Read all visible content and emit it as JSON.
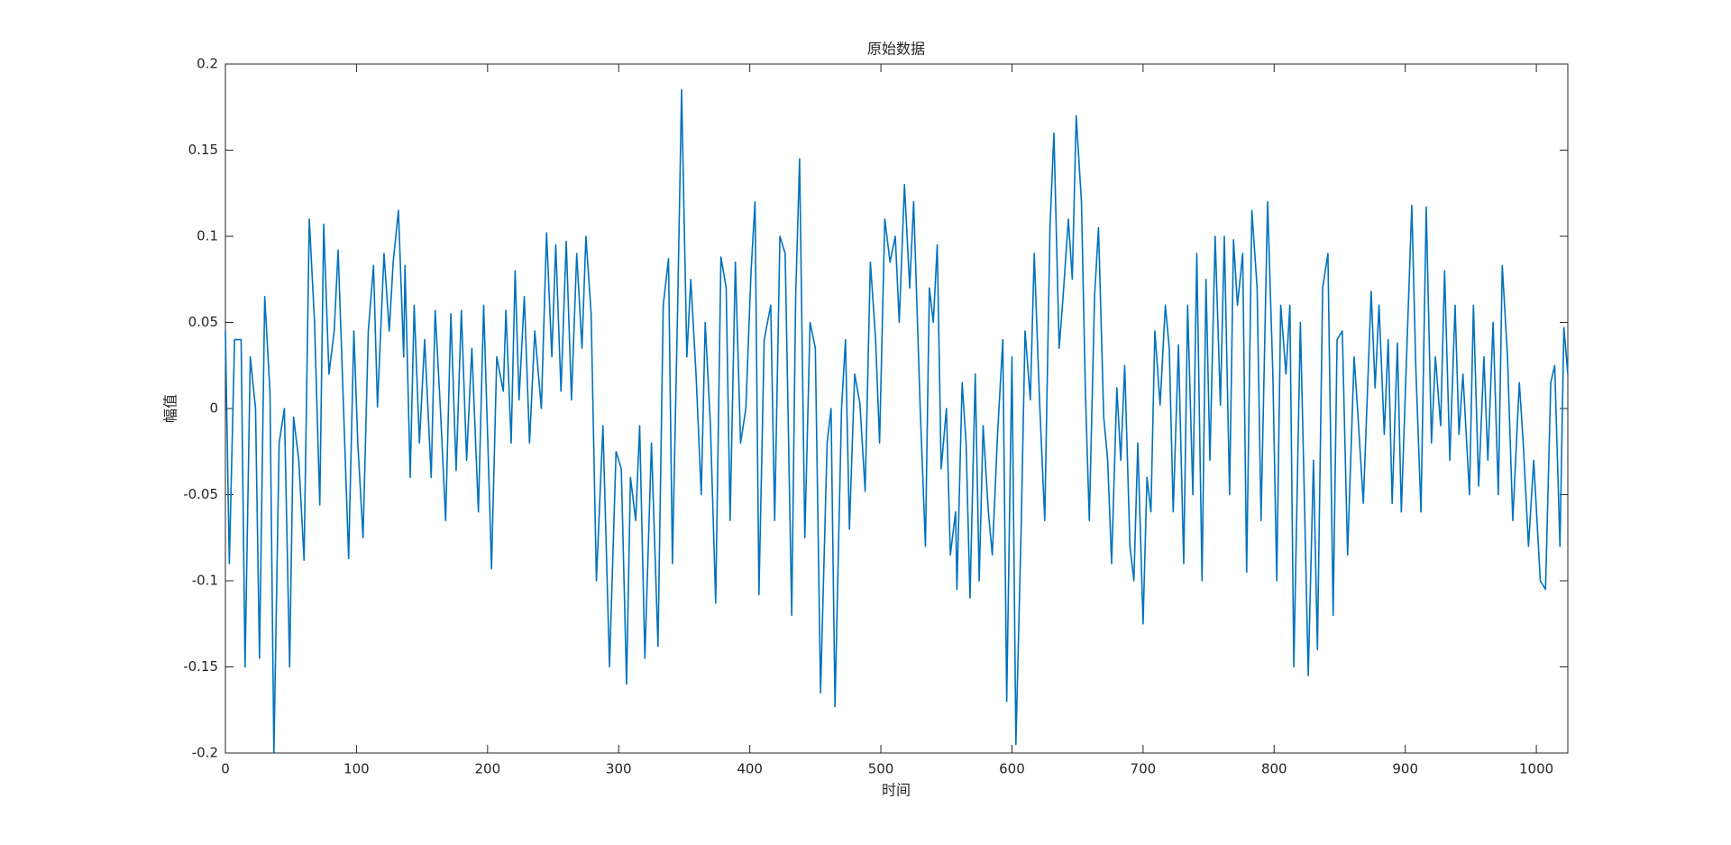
{
  "chart_data": {
    "type": "line",
    "title": "原始数据",
    "xlabel": "时间",
    "ylabel": "幅值",
    "color": "#0072bd",
    "xlim": [
      0,
      1024
    ],
    "xticks": [
      0,
      100,
      200,
      300,
      400,
      500,
      600,
      700,
      800,
      900,
      1000
    ],
    "ylim": [
      -0.2,
      0.2
    ],
    "yticks": [
      -0.2,
      -0.15,
      -0.1,
      -0.05,
      0,
      0.05,
      0.1,
      0.15,
      0.2
    ],
    "grid": false,
    "x": [
      0,
      3,
      7,
      12,
      15,
      19,
      23,
      26,
      30,
      34,
      37,
      41,
      45,
      49,
      52,
      56,
      60,
      64,
      68,
      72,
      75,
      79,
      83,
      86,
      90,
      94,
      98,
      101,
      105,
      109,
      113,
      116,
      121,
      125,
      128,
      132,
      136,
      137,
      141,
      144,
      148,
      152,
      157,
      160,
      164,
      168,
      172,
      176,
      180,
      184,
      188,
      193,
      197,
      201,
      203,
      207,
      212,
      214,
      218,
      221,
      224,
      228,
      232,
      236,
      241,
      245,
      249,
      252,
      256,
      260,
      264,
      268,
      272,
      275,
      279,
      283,
      288,
      293,
      298,
      302,
      306,
      309,
      313,
      316,
      320,
      325,
      330,
      334,
      338,
      341,
      345,
      348,
      352,
      355,
      359,
      363,
      366,
      370,
      374,
      378,
      382,
      385,
      389,
      393,
      397,
      401,
      404,
      407,
      411,
      416,
      419,
      423,
      427,
      432,
      435,
      438,
      442,
      446,
      450,
      454,
      459,
      462,
      465,
      470,
      473,
      476,
      480,
      484,
      488,
      492,
      496,
      499,
      503,
      507,
      511,
      514,
      518,
      522,
      525,
      530,
      534,
      537,
      540,
      543,
      546,
      550,
      553,
      557,
      558,
      562,
      565,
      568,
      572,
      575,
      578,
      582,
      585,
      589,
      593,
      596,
      600,
      603,
      607,
      610,
      614,
      617,
      621,
      625,
      629,
      632,
      636,
      639,
      643,
      646,
      649,
      653,
      656,
      659,
      663,
      666,
      670,
      673,
      676,
      680,
      683,
      686,
      690,
      693,
      696,
      700,
      703,
      706,
      709,
      713,
      717,
      720,
      723,
      727,
      731,
      734,
      738,
      741,
      745,
      748,
      751,
      755,
      759,
      762,
      766,
      769,
      772,
      776,
      779,
      783,
      787,
      790,
      795,
      799,
      802,
      805,
      809,
      812,
      815,
      820,
      823,
      826,
      830,
      833,
      837,
      841,
      845,
      848,
      852,
      856,
      861,
      864,
      868,
      874,
      877,
      880,
      884,
      887,
      890,
      894,
      897,
      901,
      905,
      908,
      912,
      916,
      920,
      923,
      927,
      930,
      934,
      938,
      941,
      944,
      949,
      952,
      956,
      960,
      963,
      967,
      971,
      974,
      978,
      982,
      987,
      990,
      994,
      998,
      1003,
      1007,
      1011,
      1014,
      1018,
      1021,
      1024
    ],
    "values": [
      0.045,
      -0.09,
      0.04,
      0.04,
      -0.15,
      0.03,
      0,
      -0.145,
      0.065,
      0.01,
      -0.2,
      -0.02,
      0,
      -0.15,
      -0.005,
      -0.03,
      -0.088,
      0.11,
      0.05,
      -0.056,
      0.107,
      0.02,
      0.045,
      0.092,
      0.003,
      -0.087,
      0.045,
      -0.02,
      -0.075,
      0.045,
      0.083,
      0.001,
      0.09,
      0.045,
      0.085,
      0.115,
      0.03,
      0.083,
      -0.04,
      0.06,
      -0.02,
      0.04,
      -0.04,
      0.057,
      0,
      -0.065,
      0.055,
      -0.036,
      0.057,
      -0.03,
      0.035,
      -0.06,
      0.06,
      -0.04,
      -0.093,
      0.03,
      0.01,
      0.057,
      -0.02,
      0.08,
      0.005,
      0.065,
      -0.02,
      0.045,
      0,
      0.102,
      0.03,
      0.095,
      0.01,
      0.097,
      0.005,
      0.09,
      0.035,
      0.1,
      0.055,
      -0.1,
      -0.01,
      -0.15,
      -0.025,
      -0.035,
      -0.16,
      -0.04,
      -0.065,
      -0.01,
      -0.145,
      -0.02,
      -0.138,
      0.06,
      0.087,
      -0.09,
      0.06,
      0.185,
      0.03,
      0.075,
      0.02,
      -0.05,
      0.05,
      -0.01,
      -0.113,
      0.088,
      0.07,
      -0.065,
      0.085,
      -0.02,
      0,
      0.08,
      0.12,
      -0.108,
      0.04,
      0.06,
      -0.065,
      0.1,
      0.09,
      -0.12,
      0.065,
      0.145,
      -0.075,
      0.05,
      0.035,
      -0.165,
      -0.02,
      0,
      -0.173,
      0,
      0.04,
      -0.07,
      0.02,
      0.003,
      -0.048,
      0.085,
      0.04,
      -0.02,
      0.11,
      0.085,
      0.1,
      0.05,
      0.13,
      0.07,
      0.12,
      0,
      -0.08,
      0.07,
      0.05,
      0.095,
      -0.035,
      0,
      -0.085,
      -0.06,
      -0.105,
      0.015,
      -0.02,
      -0.11,
      0.02,
      -0.1,
      -0.01,
      -0.06,
      -0.085,
      -0.015,
      0.04,
      -0.17,
      0.03,
      -0.195,
      -0.07,
      0.045,
      0.005,
      0.09,
      0.005,
      -0.065,
      0.105,
      0.16,
      0.035,
      0.065,
      0.11,
      0.075,
      0.17,
      0.12,
      0.01,
      -0.065,
      0.065,
      0.105,
      -0.005,
      -0.03,
      -0.09,
      0.012,
      -0.03,
      0.025,
      -0.08,
      -0.1,
      -0.02,
      -0.125,
      -0.04,
      -0.06,
      0.045,
      0.002,
      0.06,
      0.035,
      -0.06,
      0.037,
      -0.09,
      0.06,
      -0.05,
      0.09,
      -0.1,
      0.075,
      -0.03,
      0.1,
      0.002,
      0.1,
      -0.05,
      0.098,
      0.06,
      0.09,
      -0.095,
      0.115,
      0.07,
      -0.065,
      0.12,
      0.02,
      -0.1,
      0.06,
      0.02,
      0.06,
      -0.15,
      0.05,
      -0.05,
      -0.155,
      -0.03,
      -0.14,
      0.07,
      0.09,
      -0.12,
      0.04,
      0.045,
      -0.085,
      0.03,
      -0.005,
      -0.055,
      0.068,
      0.012,
      0.06,
      -0.015,
      0.04,
      -0.055,
      0.038,
      -0.06,
      0.03,
      0.118,
      0.025,
      -0.06,
      0.117,
      -0.02,
      0.03,
      -0.01,
      0.08,
      -0.03,
      0.06,
      -0.015,
      0.02,
      -0.05,
      0.06,
      -0.045,
      0.03,
      -0.03,
      0.05,
      -0.05,
      0.083,
      0.03,
      -0.065,
      0.015,
      -0.02,
      -0.08,
      -0.03,
      -0.1,
      -0.105,
      0.015,
      0.025,
      -0.08,
      0.047,
      0.02
    ]
  }
}
